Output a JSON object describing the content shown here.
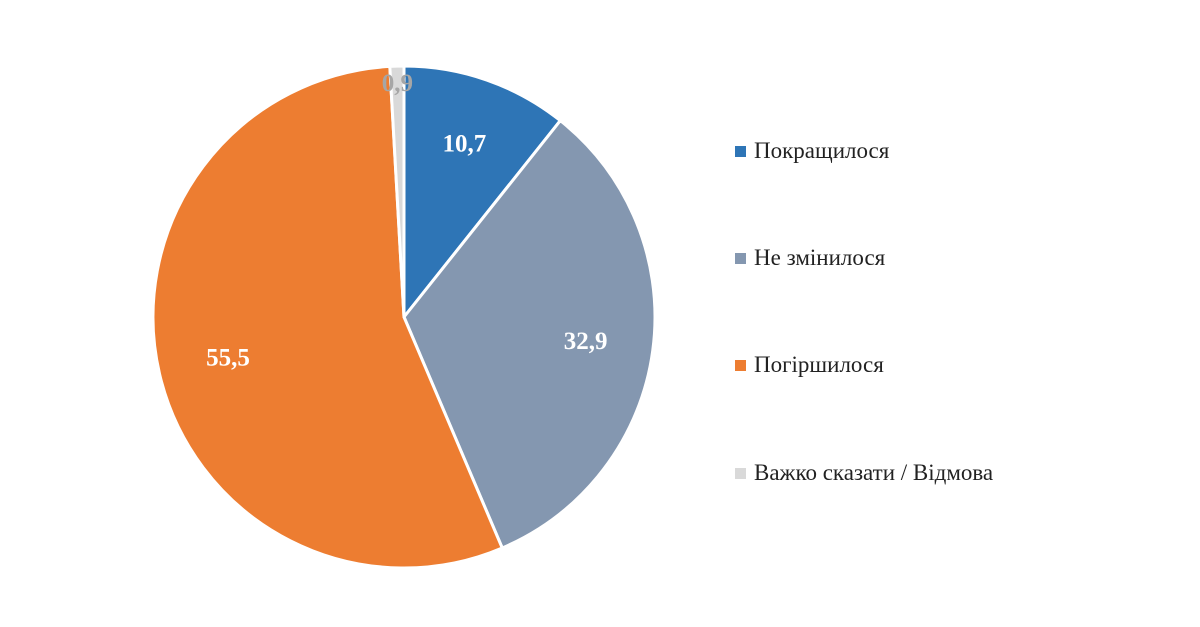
{
  "chart_data": {
    "type": "pie",
    "categories": [
      "Покращилося",
      "Не змінилося",
      "Погіршилося",
      "Важко сказати / Відмова"
    ],
    "values": [
      10.7,
      32.9,
      55.5,
      0.9
    ],
    "value_labels": [
      "10,7",
      "32,9",
      "55,5",
      "0,9"
    ],
    "colors": [
      "#2e75b6",
      "#8497b0",
      "#ed7d31",
      "#d9d9d9"
    ],
    "label_colors": [
      "#ffffff",
      "#ffffff",
      "#ffffff",
      "#a6a6a6"
    ],
    "start_angle": "12 o'clock",
    "direction": "clockwise",
    "legend_position": "right"
  }
}
